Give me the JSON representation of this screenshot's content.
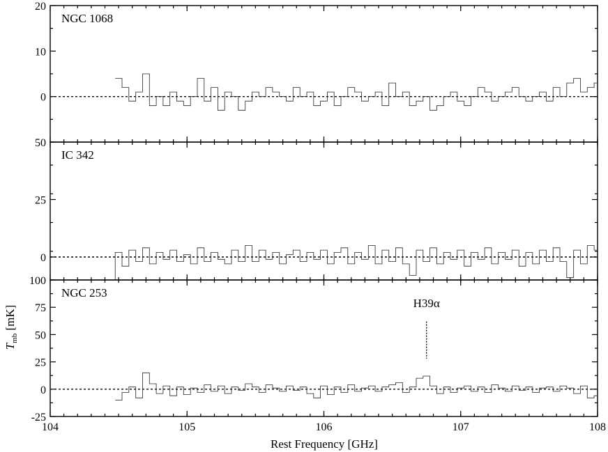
{
  "chart_data": [
    {
      "type": "line",
      "panel_label": "NGC 1068",
      "xlim": [
        104,
        108
      ],
      "ylim": [
        -10,
        20
      ],
      "y_ticks": [
        20,
        10,
        0
      ],
      "step": true,
      "series": [
        {
          "x": [
            104.5,
            104.55,
            104.6,
            104.65,
            104.7,
            104.75,
            104.8,
            104.85,
            104.9,
            104.95,
            105.0,
            105.05,
            105.1,
            105.15,
            105.2,
            105.25,
            105.3,
            105.35,
            105.4,
            105.45,
            105.5,
            105.55,
            105.6,
            105.65,
            105.7,
            105.75,
            105.8,
            105.85,
            105.9,
            105.95,
            106.0,
            106.05,
            106.1,
            106.15,
            106.2,
            106.25,
            106.3,
            106.35,
            106.4,
            106.45,
            106.5,
            106.55,
            106.6,
            106.65,
            106.7,
            106.75,
            106.8,
            106.85,
            106.9,
            106.95,
            107.0,
            107.05,
            107.1,
            107.15,
            107.2,
            107.25,
            107.3,
            107.35,
            107.4,
            107.45,
            107.5,
            107.55,
            107.6,
            107.65,
            107.7,
            107.75,
            107.8,
            107.85,
            107.9,
            107.95,
            108.0
          ],
          "y": [
            4,
            2,
            -1,
            1,
            5,
            -2,
            0,
            -2,
            1,
            -1,
            -2,
            0,
            4,
            -1,
            2,
            -3,
            1,
            0,
            -3,
            -1,
            1,
            0,
            2,
            1,
            0,
            -1,
            2,
            0,
            1,
            -2,
            -1,
            1,
            -2,
            0,
            2,
            1,
            -1,
            0,
            1,
            -2,
            3,
            0,
            1,
            -2,
            -1,
            0,
            -3,
            -2,
            0,
            1,
            -1,
            -2,
            0,
            2,
            1,
            -1,
            0,
            1,
            2,
            0,
            -1,
            0,
            1,
            -1,
            2,
            0,
            3,
            4,
            1,
            2,
            3
          ]
        }
      ]
    },
    {
      "type": "line",
      "panel_label": "IC 342",
      "xlim": [
        104,
        108
      ],
      "ylim": [
        -10,
        50
      ],
      "y_ticks": [
        50,
        25,
        0
      ],
      "step": true,
      "series": [
        {
          "x": [
            104.45,
            104.5,
            104.55,
            104.6,
            104.65,
            104.7,
            104.75,
            104.8,
            104.85,
            104.9,
            104.95,
            105.0,
            105.05,
            105.1,
            105.15,
            105.2,
            105.25,
            105.3,
            105.35,
            105.4,
            105.45,
            105.5,
            105.55,
            105.6,
            105.65,
            105.7,
            105.75,
            105.8,
            105.85,
            105.9,
            105.95,
            106.0,
            106.05,
            106.1,
            106.15,
            106.2,
            106.25,
            106.3,
            106.35,
            106.4,
            106.45,
            106.5,
            106.55,
            106.6,
            106.65,
            106.7,
            106.75,
            106.8,
            106.85,
            106.9,
            106.95,
            107.0,
            107.05,
            107.1,
            107.15,
            107.2,
            107.25,
            107.3,
            107.35,
            107.4,
            107.45,
            107.5,
            107.55,
            107.6,
            107.65,
            107.7,
            107.75,
            107.8,
            107.85,
            107.9,
            107.95,
            108.0
          ],
          "y": [
            -10,
            2,
            -4,
            3,
            -2,
            4,
            -3,
            2,
            -1,
            3,
            -2,
            1,
            -3,
            4,
            -2,
            2,
            -1,
            -3,
            3,
            -2,
            5,
            -2,
            3,
            -1,
            2,
            -3,
            1,
            3,
            -2,
            2,
            -1,
            3,
            -3,
            2,
            4,
            -3,
            2,
            -1,
            5,
            -3,
            3,
            -2,
            4,
            -3,
            -8,
            3,
            -2,
            4,
            -3,
            2,
            -1,
            3,
            -4,
            2,
            -1,
            4,
            -3,
            2,
            -1,
            3,
            -4,
            2,
            -3,
            3,
            -2,
            4,
            -2,
            -9,
            3,
            -3,
            5,
            3
          ]
        }
      ]
    },
    {
      "type": "line",
      "panel_label": "NGC 253",
      "xlim": [
        104,
        108
      ],
      "ylim": [
        -25,
        100
      ],
      "y_ticks": [
        100,
        75,
        50,
        25,
        0,
        -25
      ],
      "step": true,
      "annotation": {
        "text": "H39α",
        "x": 106.75
      },
      "series": [
        {
          "x": [
            104.5,
            104.55,
            104.6,
            104.65,
            104.7,
            104.75,
            104.8,
            104.85,
            104.9,
            104.95,
            105.0,
            105.05,
            105.1,
            105.15,
            105.2,
            105.25,
            105.3,
            105.35,
            105.4,
            105.45,
            105.5,
            105.55,
            105.6,
            105.65,
            105.7,
            105.75,
            105.8,
            105.85,
            105.9,
            105.95,
            106.0,
            106.05,
            106.1,
            106.15,
            106.2,
            106.25,
            106.3,
            106.35,
            106.4,
            106.45,
            106.5,
            106.55,
            106.6,
            106.65,
            106.7,
            106.75,
            106.8,
            106.85,
            106.9,
            106.95,
            107.0,
            107.05,
            107.1,
            107.15,
            107.2,
            107.25,
            107.3,
            107.35,
            107.4,
            107.45,
            107.5,
            107.55,
            107.6,
            107.65,
            107.7,
            107.75,
            107.8,
            107.85,
            107.9,
            107.95,
            108.0
          ],
          "y": [
            -10,
            -3,
            2,
            -8,
            15,
            5,
            -4,
            3,
            -6,
            2,
            -5,
            1,
            -3,
            4,
            -2,
            3,
            -4,
            2,
            -1,
            5,
            2,
            -3,
            4,
            1,
            -2,
            3,
            -1,
            2,
            -4,
            -8,
            3,
            -5,
            2,
            -3,
            4,
            -2,
            1,
            3,
            -2,
            2,
            4,
            6,
            -3,
            2,
            10,
            12,
            3,
            -4,
            2,
            -3,
            1,
            3,
            -2,
            2,
            -3,
            4,
            1,
            -2,
            3,
            -1,
            2,
            -3,
            1,
            2,
            -2,
            3,
            1,
            -4,
            3,
            -8,
            -6
          ]
        }
      ]
    }
  ],
  "axes": {
    "xlabel": "Rest Frequency [GHz]",
    "ylabel_main": "T",
    "ylabel_sub": "mb",
    "ylabel_unit": " [mK]",
    "x_ticks": [
      "104",
      "105",
      "106",
      "107",
      "108"
    ]
  }
}
